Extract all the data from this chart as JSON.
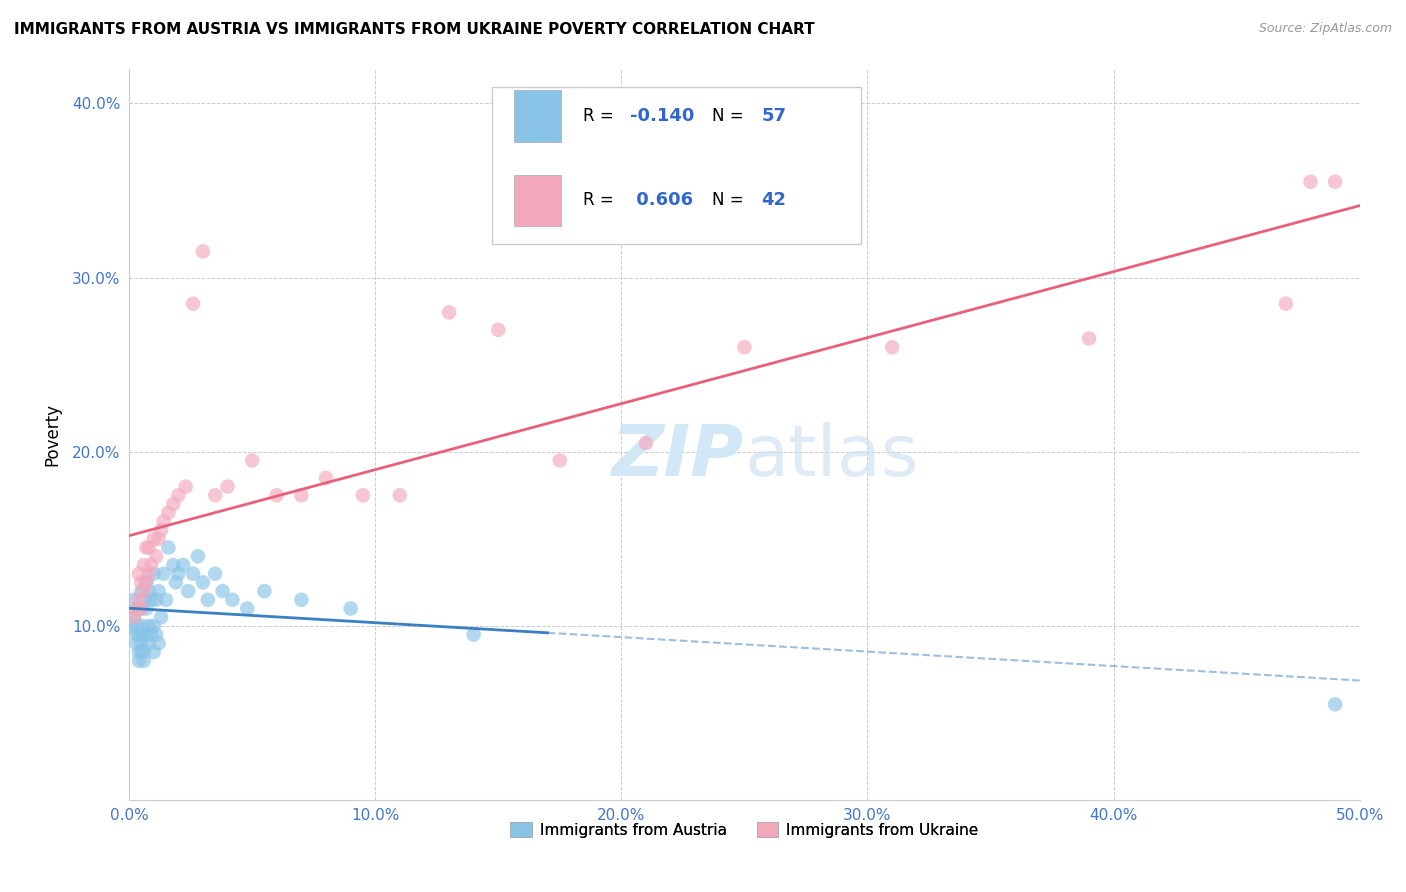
{
  "title": "IMMIGRANTS FROM AUSTRIA VS IMMIGRANTS FROM UKRAINE POVERTY CORRELATION CHART",
  "source": "Source: ZipAtlas.com",
  "ylabel": "Poverty",
  "xlim": [
    0.0,
    0.5
  ],
  "ylim": [
    0.0,
    0.42
  ],
  "xtick_labels": [
    "0.0%",
    "10.0%",
    "20.0%",
    "30.0%",
    "40.0%",
    "50.0%"
  ],
  "xtick_vals": [
    0.0,
    0.1,
    0.2,
    0.3,
    0.4,
    0.5
  ],
  "ytick_labels": [
    "10.0%",
    "20.0%",
    "30.0%",
    "40.0%"
  ],
  "ytick_vals": [
    0.1,
    0.2,
    0.3,
    0.4
  ],
  "austria_color": "#89C4E8",
  "ukraine_color": "#F4A8BC",
  "austria_line_color": "#3A7FC1",
  "ukraine_line_color": "#E8607A",
  "austria_R": -0.14,
  "austria_N": 57,
  "ukraine_R": 0.606,
  "ukraine_N": 42,
  "legend_label_austria": "Immigrants from Austria",
  "legend_label_ukraine": "Immigrants from Ukraine",
  "watermark_zip": "ZIP",
  "watermark_atlas": "atlas",
  "austria_x": [
    0.001,
    0.002,
    0.002,
    0.003,
    0.003,
    0.003,
    0.004,
    0.004,
    0.004,
    0.004,
    0.005,
    0.005,
    0.005,
    0.005,
    0.005,
    0.005,
    0.006,
    0.006,
    0.006,
    0.006,
    0.007,
    0.007,
    0.007,
    0.008,
    0.008,
    0.008,
    0.009,
    0.009,
    0.01,
    0.01,
    0.01,
    0.011,
    0.011,
    0.012,
    0.012,
    0.013,
    0.014,
    0.015,
    0.016,
    0.018,
    0.019,
    0.02,
    0.022,
    0.024,
    0.026,
    0.028,
    0.03,
    0.032,
    0.035,
    0.038,
    0.042,
    0.048,
    0.055,
    0.07,
    0.09,
    0.14,
    0.49
  ],
  "austria_y": [
    0.1,
    0.105,
    0.115,
    0.09,
    0.095,
    0.1,
    0.08,
    0.085,
    0.095,
    0.11,
    0.085,
    0.09,
    0.095,
    0.1,
    0.11,
    0.12,
    0.08,
    0.085,
    0.095,
    0.115,
    0.095,
    0.11,
    0.125,
    0.09,
    0.1,
    0.12,
    0.095,
    0.115,
    0.085,
    0.1,
    0.13,
    0.095,
    0.115,
    0.09,
    0.12,
    0.105,
    0.13,
    0.115,
    0.145,
    0.135,
    0.125,
    0.13,
    0.135,
    0.12,
    0.13,
    0.14,
    0.125,
    0.115,
    0.13,
    0.12,
    0.115,
    0.11,
    0.12,
    0.115,
    0.11,
    0.095,
    0.055
  ],
  "ukraine_x": [
    0.002,
    0.003,
    0.004,
    0.004,
    0.005,
    0.005,
    0.006,
    0.006,
    0.007,
    0.007,
    0.008,
    0.008,
    0.009,
    0.01,
    0.011,
    0.012,
    0.013,
    0.014,
    0.016,
    0.018,
    0.02,
    0.023,
    0.026,
    0.03,
    0.035,
    0.04,
    0.05,
    0.06,
    0.07,
    0.08,
    0.095,
    0.11,
    0.13,
    0.15,
    0.175,
    0.21,
    0.25,
    0.31,
    0.39,
    0.47,
    0.48,
    0.49
  ],
  "ukraine_y": [
    0.105,
    0.11,
    0.115,
    0.13,
    0.11,
    0.125,
    0.12,
    0.135,
    0.125,
    0.145,
    0.13,
    0.145,
    0.135,
    0.15,
    0.14,
    0.15,
    0.155,
    0.16,
    0.165,
    0.17,
    0.175,
    0.18,
    0.285,
    0.315,
    0.175,
    0.18,
    0.195,
    0.175,
    0.175,
    0.185,
    0.175,
    0.175,
    0.28,
    0.27,
    0.195,
    0.205,
    0.26,
    0.26,
    0.265,
    0.285,
    0.355,
    0.355
  ]
}
